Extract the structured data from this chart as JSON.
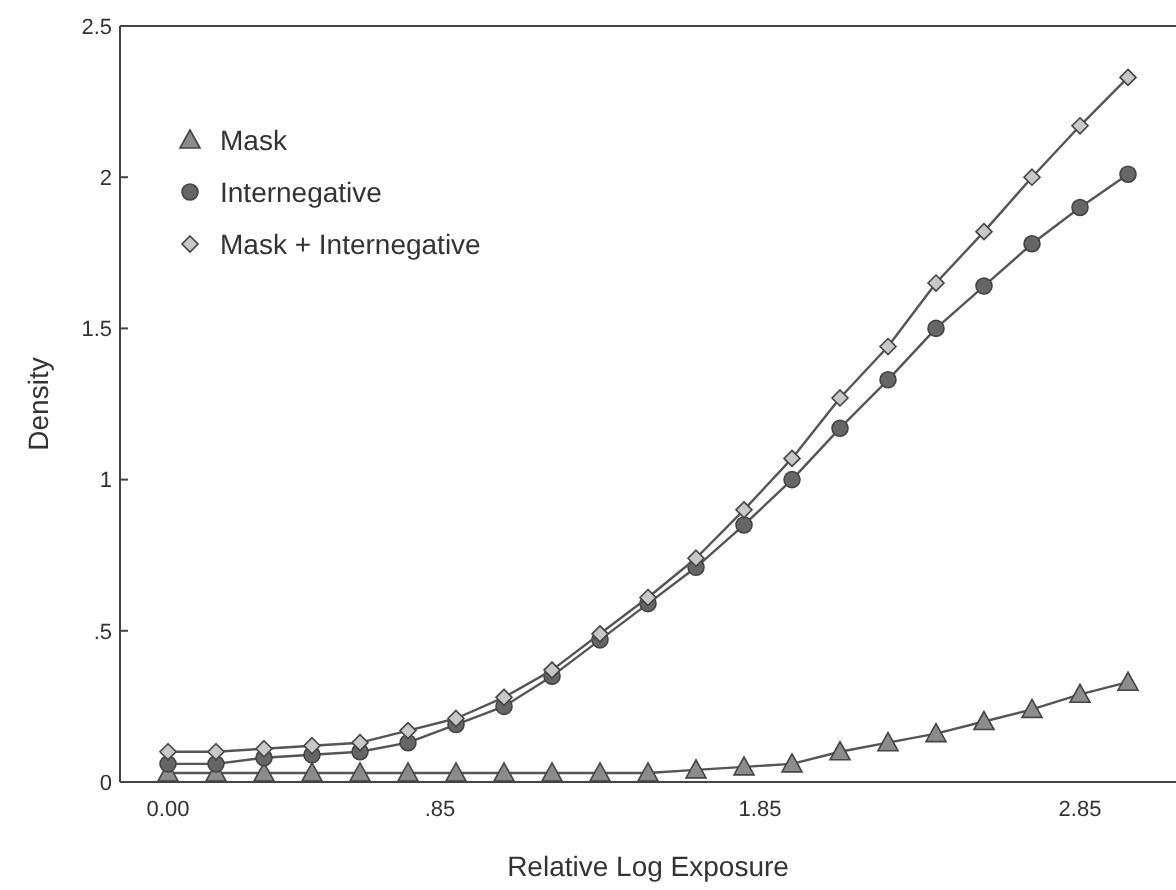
{
  "chart_data": {
    "type": "line",
    "xlabel": "Relative Log Exposure",
    "ylabel": "Density",
    "x": [
      0,
      0.15,
      0.3,
      0.45,
      0.6,
      0.75,
      0.9,
      1.05,
      1.2,
      1.35,
      1.5,
      1.65,
      1.8,
      1.95,
      2.1,
      2.25,
      2.4,
      2.55,
      2.7,
      2.85,
      3.0
    ],
    "series": [
      {
        "name": "Mask",
        "color": "#8c8c8c",
        "marker": "triangle",
        "values": [
          0.03,
          0.03,
          0.03,
          0.03,
          0.03,
          0.03,
          0.03,
          0.03,
          0.03,
          0.03,
          0.03,
          0.04,
          0.05,
          0.06,
          0.1,
          0.13,
          0.16,
          0.2,
          0.24,
          0.29,
          0.33
        ]
      },
      {
        "name": "Internegative",
        "color": "#666666",
        "marker": "circle",
        "values": [
          0.06,
          0.06,
          0.08,
          0.09,
          0.1,
          0.13,
          0.19,
          0.25,
          0.35,
          0.47,
          0.59,
          0.71,
          0.85,
          1.0,
          1.17,
          1.33,
          1.5,
          1.64,
          1.78,
          1.9,
          2.01
        ]
      },
      {
        "name": "Mask + Internegative",
        "color": "#c8c8c8",
        "marker": "diamond",
        "values": [
          0.1,
          0.1,
          0.11,
          0.12,
          0.13,
          0.17,
          0.21,
          0.28,
          0.37,
          0.49,
          0.61,
          0.74,
          0.9,
          1.07,
          1.27,
          1.44,
          1.65,
          1.82,
          2.0,
          2.17,
          2.33
        ]
      }
    ],
    "xlim": [
      -0.15,
      3.15
    ],
    "xticks": [
      {
        "value": 0,
        "label": "0.00"
      },
      {
        "value": 0.85,
        "label": ".85"
      },
      1.85,
      2.85
    ],
    "ylim": [
      0,
      2.5
    ],
    "yticks": [
      0,
      {
        "value": 0.5,
        "label": ".5"
      },
      1,
      1.5,
      2,
      2.5
    ],
    "grid": false,
    "legend": "top left",
    "line_style": "solid"
  }
}
